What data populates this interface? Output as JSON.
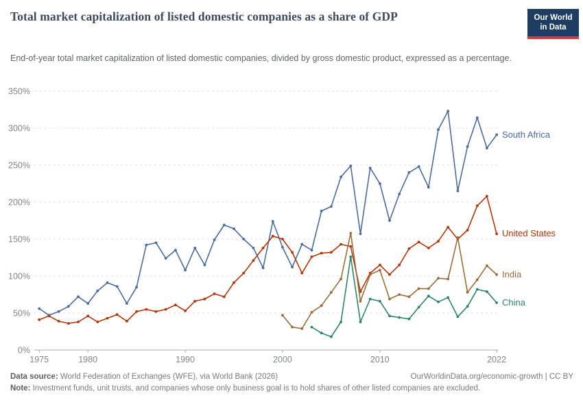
{
  "header": {
    "title": "Total market capitalization of listed domestic companies as a share of GDP",
    "subtitle": "End-of-year total market capitalization of listed domestic companies, divided by gross domestic product, expressed as a percentage.",
    "logo": {
      "line1": "Our World",
      "line2": "in Data",
      "bg_color": "#1d3d63",
      "bar_color": "#d73c34"
    }
  },
  "footer": {
    "source_label": "Data source:",
    "source_text": " World Federation of Exchanges (WFE), via World Bank (2026)",
    "attribution": "OurWorldinData.org/economic-growth | CC BY",
    "note_label": "Note:",
    "note_text": " Investment funds, unit trusts, and companies whose only business goal is to hold shares of other listed companies are excluded."
  },
  "chart_data": {
    "type": "line",
    "title": "Total market capitalization of listed domestic companies as a share of GDP",
    "xlabel": "",
    "ylabel": "",
    "xlim": [
      1975,
      2022
    ],
    "ylim": [
      0,
      350
    ],
    "grid": "horizontal-dashed",
    "legend_position": "end-of-line labels",
    "y_ticks": [
      "0%",
      "50%",
      "100%",
      "150%",
      "200%",
      "250%",
      "300%",
      "350%"
    ],
    "x_ticks": [
      "1975",
      "1980",
      "1990",
      "2000",
      "2010",
      "2022"
    ],
    "series": [
      {
        "name": "South Africa",
        "color": "#4C6A9C",
        "start_year": 1975,
        "values": [
          56,
          47,
          52,
          59,
          72,
          63,
          80,
          91,
          86,
          63,
          85,
          142,
          145,
          124,
          135,
          108,
          138,
          115,
          149,
          169,
          164,
          150,
          138,
          111,
          174,
          139,
          112,
          143,
          135,
          188,
          194,
          234,
          249,
          157,
          246,
          225,
          175,
          211,
          240,
          248,
          220,
          298,
          323,
          215,
          275,
          314,
          273,
          291
        ]
      },
      {
        "name": "United States",
        "color": "#B13507",
        "start_year": 1975,
        "values": [
          41,
          46,
          39,
          36,
          38,
          46,
          38,
          43,
          48,
          39,
          52,
          55,
          52,
          55,
          61,
          53,
          66,
          69,
          76,
          72,
          91,
          104,
          121,
          138,
          154,
          150,
          132,
          104,
          126,
          131,
          132,
          143,
          140,
          79,
          104,
          115,
          102,
          115,
          137,
          146,
          138,
          147,
          166,
          150,
          162,
          195,
          208,
          157
        ]
      },
      {
        "name": "India",
        "color": "#996D39",
        "start_year": 2000,
        "values": [
          47,
          31,
          29,
          51,
          60,
          78,
          96,
          158,
          66,
          102,
          108,
          69,
          75,
          72,
          83,
          83,
          97,
          96,
          152,
          78,
          95,
          114,
          102
        ]
      },
      {
        "name": "China",
        "color": "#2C8465",
        "start_year": 2003,
        "values": [
          31,
          23,
          18,
          38,
          126,
          38,
          69,
          66,
          46,
          44,
          42,
          58,
          73,
          65,
          71,
          45,
          59,
          82,
          79,
          64
        ]
      }
    ]
  }
}
